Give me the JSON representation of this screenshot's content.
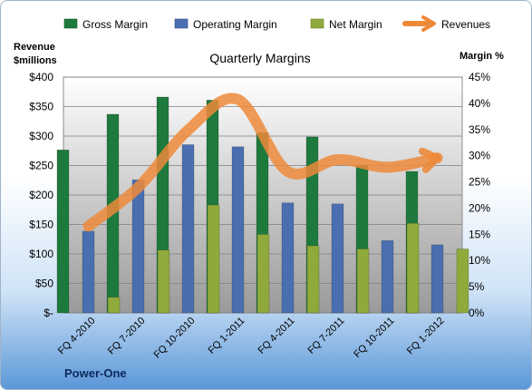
{
  "chart_data": {
    "type": "bar",
    "title": "Quarterly Margins",
    "left_axis_label": [
      "Revenue",
      "$millions"
    ],
    "right_axis_label": "Margin %",
    "footer_text": "Power-One",
    "categories": [
      "FQ 4-2010",
      "FQ 7-2010",
      "FQ 10-2010",
      "FQ 1-2011",
      "FQ 4-2011",
      "FQ 7-2011",
      "FQ 10-2011",
      "FQ 1-2012"
    ],
    "left_axis": {
      "min": 0,
      "max": 400,
      "ticks": [
        "$-",
        "$50",
        "$100",
        "$150",
        "$200",
        "$250",
        "$300",
        "$350",
        "$400"
      ]
    },
    "right_axis": {
      "min": 0,
      "max": 45,
      "ticks": [
        "0%",
        "5%",
        "10%",
        "15%",
        "20%",
        "25%",
        "30%",
        "35%",
        "40%",
        "45%"
      ]
    },
    "series": [
      {
        "name": "Gross Margin",
        "chart": "bar",
        "axis": "right",
        "color": "#1e7a3c",
        "values": [
          31.1,
          37.9,
          41.2,
          40.6,
          34.4,
          33.6,
          28.2,
          27.0
        ]
      },
      {
        "name": "Operating Margin",
        "chart": "bar",
        "axis": "right",
        "color": "#4a6fb0",
        "values": [
          15.6,
          25.4,
          32.1,
          31.7,
          21.0,
          20.8,
          13.8,
          13.0
        ]
      },
      {
        "name": "Net Margin",
        "chart": "bar",
        "axis": "right",
        "color": "#8faa3a",
        "values": [
          3.0,
          12.0,
          20.6,
          15.0,
          12.8,
          12.2,
          17.1,
          12.2
        ]
      },
      {
        "name": "Revenues",
        "chart": "line",
        "axis": "left",
        "color": "#ed8a3a",
        "values": [
          147,
          213,
          310,
          362,
          240,
          260,
          247,
          263
        ]
      }
    ],
    "grid": true,
    "legend_position": "top"
  }
}
